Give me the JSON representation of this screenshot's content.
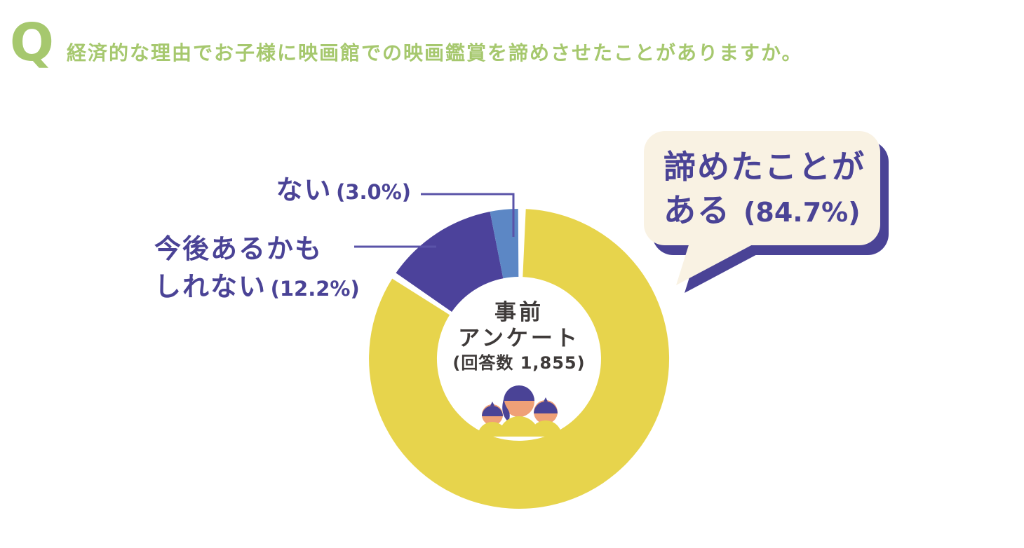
{
  "question": {
    "mark": "Q",
    "text": "経済的な理由でお子様に映画館での映画鑑賞を諦めさせたことがありますか。"
  },
  "chart_data": {
    "type": "pie",
    "subtype": "donut",
    "title": "経済的な理由でお子様に映画館での映画鑑賞を諦めさせたことがありますか。",
    "categories": [
      "諦めたことがある",
      "今後あるかもしれない",
      "ない"
    ],
    "values": [
      84.7,
      12.2,
      3.0
    ],
    "unit": "%",
    "colors": [
      "#e7d44c",
      "#4c429b",
      "#5c87c5"
    ],
    "start_angle_deg": 0,
    "direction": "clockwise",
    "gap_deg": [
      2.6,
      0,
      0
    ],
    "legend_position": "callouts",
    "center_label_lines": [
      "事前",
      "アンケート",
      "(回答数 1,855)"
    ],
    "respondent_count": "1,855"
  },
  "callouts": {
    "nai": {
      "label": "ない",
      "pct": "(3.0%)"
    },
    "future": {
      "line1": "今後あるかも",
      "line2": "しれない",
      "pct": "(12.2%)"
    },
    "bubble": {
      "line1": "諦めたことが",
      "line2": "ある",
      "pct": "(84.7%)"
    }
  },
  "colors": {
    "bg": "#ffffff",
    "green": "#a6c86e",
    "indigo": "#4a4396",
    "blue": "#5c87c5",
    "yellow": "#e7d44c",
    "cream": "#f9f2e3",
    "text-dark": "#3e3a39",
    "leader": "#5a53a8",
    "skin": "#efa077"
  }
}
